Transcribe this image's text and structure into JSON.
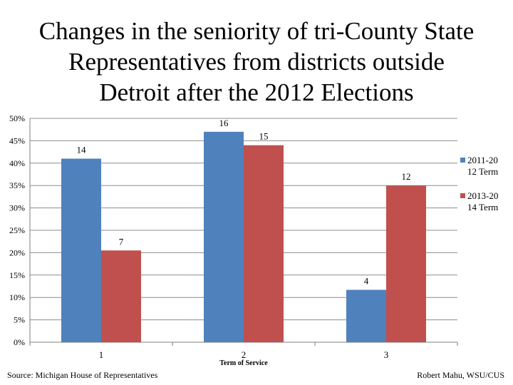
{
  "title": {
    "line1": "Changes in the seniority of tri-County State",
    "line2": "Representatives from districts outside",
    "line3": "Detroit after the 2012 Elections"
  },
  "footer": {
    "source": "Source: Michigan House of Representatives",
    "credit": "Robert Mahu, WSU/CUS"
  },
  "chart_data": {
    "type": "bar",
    "categories": [
      "1",
      "2",
      "3"
    ],
    "series": [
      {
        "name": "2011-2012 Term",
        "legend_lines": [
          "2011-20",
          "12 Term"
        ],
        "color": "#4f81bd",
        "values": [
          41,
          47,
          11.7
        ],
        "labels": [
          "14",
          "16",
          "4"
        ]
      },
      {
        "name": "2013-2014 Term",
        "legend_lines": [
          "2013-20",
          "14 Term"
        ],
        "color": "#c0504d",
        "values": [
          20.5,
          44,
          35
        ],
        "labels": [
          "7",
          "15",
          "12"
        ]
      }
    ],
    "xlabel": "Term of Service",
    "ylabel": "",
    "ylim": [
      0,
      50
    ],
    "yticks": [
      0,
      5,
      10,
      15,
      20,
      25,
      30,
      35,
      40,
      45,
      50
    ],
    "ytick_suffix": "%",
    "grid": true,
    "legend": "right"
  }
}
